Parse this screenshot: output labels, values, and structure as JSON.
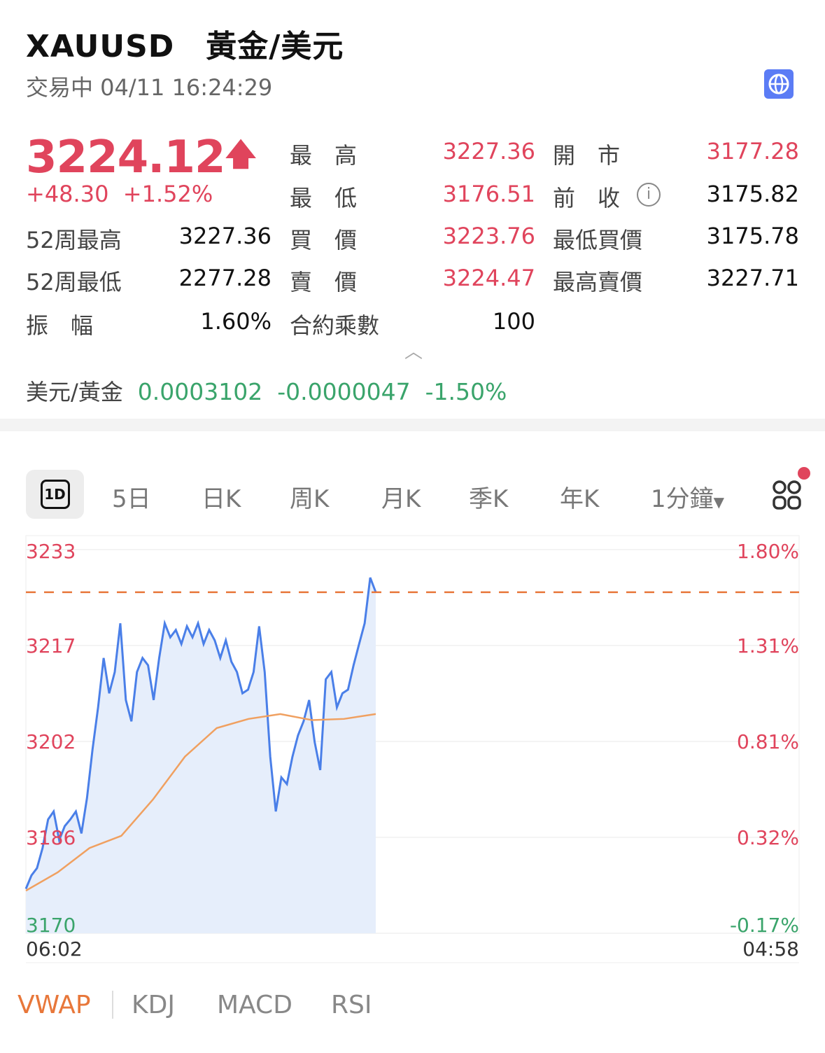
{
  "header": {
    "title": "XAUUSD　黃金/美元",
    "status": "交易中 04/11 16:24:29",
    "icon": "globe-icon"
  },
  "quote": {
    "price": "3224.12",
    "arrow": "up-arrow-icon",
    "change": "+48.30",
    "change_pct": "+1.52%",
    "rows": [
      {
        "label": "最　高",
        "value": "3227.36",
        "label2": "開　市",
        "value2": "3177.28"
      },
      {
        "label": "最　低",
        "value": "3176.51",
        "label2": "前　收",
        "value2": "3175.82"
      },
      {
        "label": "買　價",
        "value": "3223.76",
        "label2": "最低買價",
        "value2": "3175.78"
      },
      {
        "label": "賣　價",
        "value": "3224.47",
        "label2": "最高賣價",
        "value2": "3227.71"
      },
      {
        "label": "合約乘數",
        "value": "100"
      }
    ],
    "left_rows": [
      {
        "label": "52周最高",
        "value": "3227.36"
      },
      {
        "label": "52周最低",
        "value": "2277.28"
      },
      {
        "label": "振　幅",
        "value": "1.60%"
      }
    ]
  },
  "inverse": {
    "label": "美元/黃金",
    "value": "0.0003102",
    "change": "-0.0000047",
    "change_pct": "-1.50%"
  },
  "tabs": [
    "1D",
    "5日",
    "日K",
    "周K",
    "月K",
    "季K",
    "年K",
    "1分鐘"
  ],
  "colors": {
    "up": "#e0445c",
    "down": "#3aa46b",
    "line": "#4a7fe8",
    "vwap": "#f0a060",
    "ref": "#e8773a",
    "fill": "#e6eefb"
  },
  "chart_data": {
    "type": "line",
    "ylim": [
      3170,
      3233
    ],
    "y_ticks": [
      "3233",
      "3217",
      "3202",
      "3186",
      "3170"
    ],
    "pct_ticks": [
      "1.80%",
      "1.31%",
      "0.81%",
      "0.32%",
      "-0.17%"
    ],
    "x_ticks": [
      "06:02",
      "04:58"
    ],
    "ref_line": 3226,
    "price": [
      3177.3,
      3179.5,
      3180.7,
      3184,
      3188.7,
      3190,
      3185.3,
      3187.6,
      3188.7,
      3190,
      3186.4,
      3192.2,
      3200.2,
      3207.1,
      3215.2,
      3209.4,
      3212.9,
      3220.9,
      3208.3,
      3204.8,
      3212.9,
      3215.2,
      3214,
      3208.3,
      3215.2,
      3220.9,
      3218.6,
      3219.8,
      3217.5,
      3220.4,
      3218.6,
      3220.9,
      3217.5,
      3219.8,
      3218.1,
      3215.2,
      3218.1,
      3214.6,
      3212.9,
      3209.4,
      3210,
      3212.9,
      3220.4,
      3212.9,
      3199,
      3190,
      3195.6,
      3194.5,
      3199,
      3202.5,
      3204.8,
      3208.3,
      3201.4,
      3196.8,
      3211.7,
      3212.9,
      3207.1,
      3209.4,
      3210,
      3214,
      3217.5,
      3220.9,
      3228.4,
      3226
    ],
    "vwap": [
      3177,
      3180,
      3184,
      3186,
      3192,
      3199,
      3203.7,
      3205.2,
      3206,
      3205,
      3205.2,
      3206
    ]
  },
  "indicators": [
    "VWAP",
    "KDJ",
    "MACD",
    "RSI"
  ]
}
